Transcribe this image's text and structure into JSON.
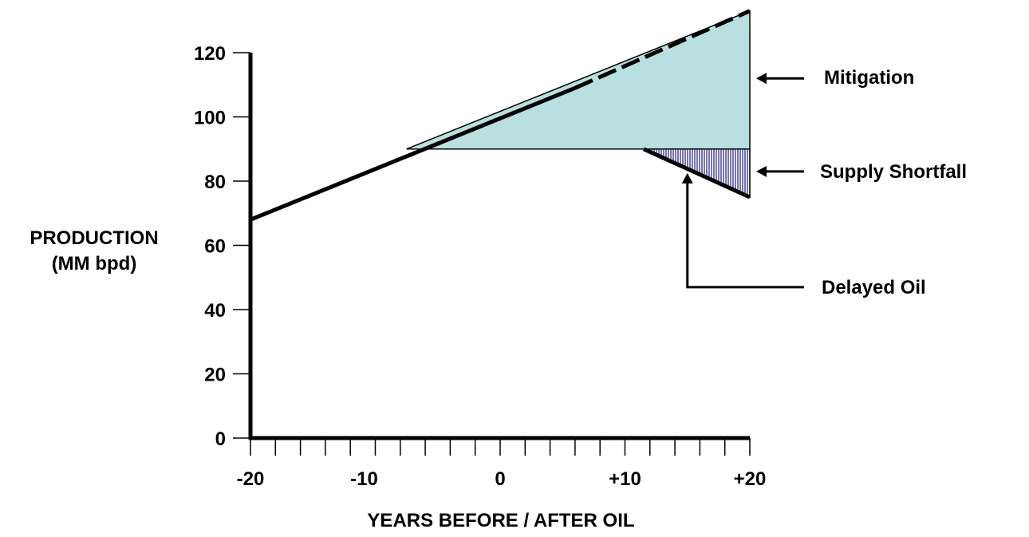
{
  "chart_data": {
    "type": "area",
    "title": "",
    "xlabel": "YEARS BEFORE / AFTER OIL",
    "ylabel": [
      "PRODUCTION",
      "(MM bpd)"
    ],
    "xlim": [
      -20,
      20
    ],
    "ylim": [
      0,
      120
    ],
    "x_ticks": [
      -20,
      -10,
      0,
      10,
      20
    ],
    "x_tick_labels": [
      "-20",
      "-10",
      "0",
      "+10",
      "+20"
    ],
    "x_minor_step": 2,
    "y_ticks": [
      0,
      20,
      40,
      60,
      80,
      100,
      120
    ],
    "y_tick_labels": [
      "0",
      "20",
      "40",
      "60",
      "80",
      "100",
      "120"
    ],
    "grid": false,
    "series": [
      {
        "role": "demand",
        "style": "solid",
        "x": [
          -20,
          6
        ],
        "y": [
          68,
          109
        ]
      },
      {
        "role": "demand-continuation",
        "style": "dashed",
        "x": [
          6,
          20
        ],
        "y": [
          109,
          133
        ]
      },
      {
        "role": "production-plateau",
        "style": "solid",
        "x": [
          -7.5,
          11.5
        ],
        "y": [
          90,
          90
        ]
      },
      {
        "role": "production-decline",
        "style": "solid",
        "x": [
          11.5,
          20
        ],
        "y": [
          90,
          75
        ]
      }
    ],
    "regions": [
      {
        "label": "Mitigation",
        "color": "#b9dfe0",
        "polygon": [
          [
            -7.5,
            90
          ],
          [
            20,
            90
          ],
          [
            20,
            133
          ]
        ]
      },
      {
        "label": "Supply Shortfall",
        "pattern": "vertical-lines",
        "color": "#3a3a8c",
        "polygon": [
          [
            11.5,
            90
          ],
          [
            20,
            90
          ],
          [
            20,
            75
          ]
        ]
      }
    ],
    "annotations": [
      {
        "text": "Mitigation",
        "arrow_to": [
          20,
          112
        ]
      },
      {
        "text": "Supply Shortfall",
        "arrow_to": [
          20,
          83
        ]
      },
      {
        "text": "Delayed Oil",
        "arrow_to": [
          15,
          83
        ],
        "elbow_at": [
          15,
          47
        ]
      }
    ]
  },
  "colors": {
    "mitigation_fill": "#b9dfe0",
    "shortfall_lines": "#3a3a8c",
    "ink": "#000000"
  }
}
